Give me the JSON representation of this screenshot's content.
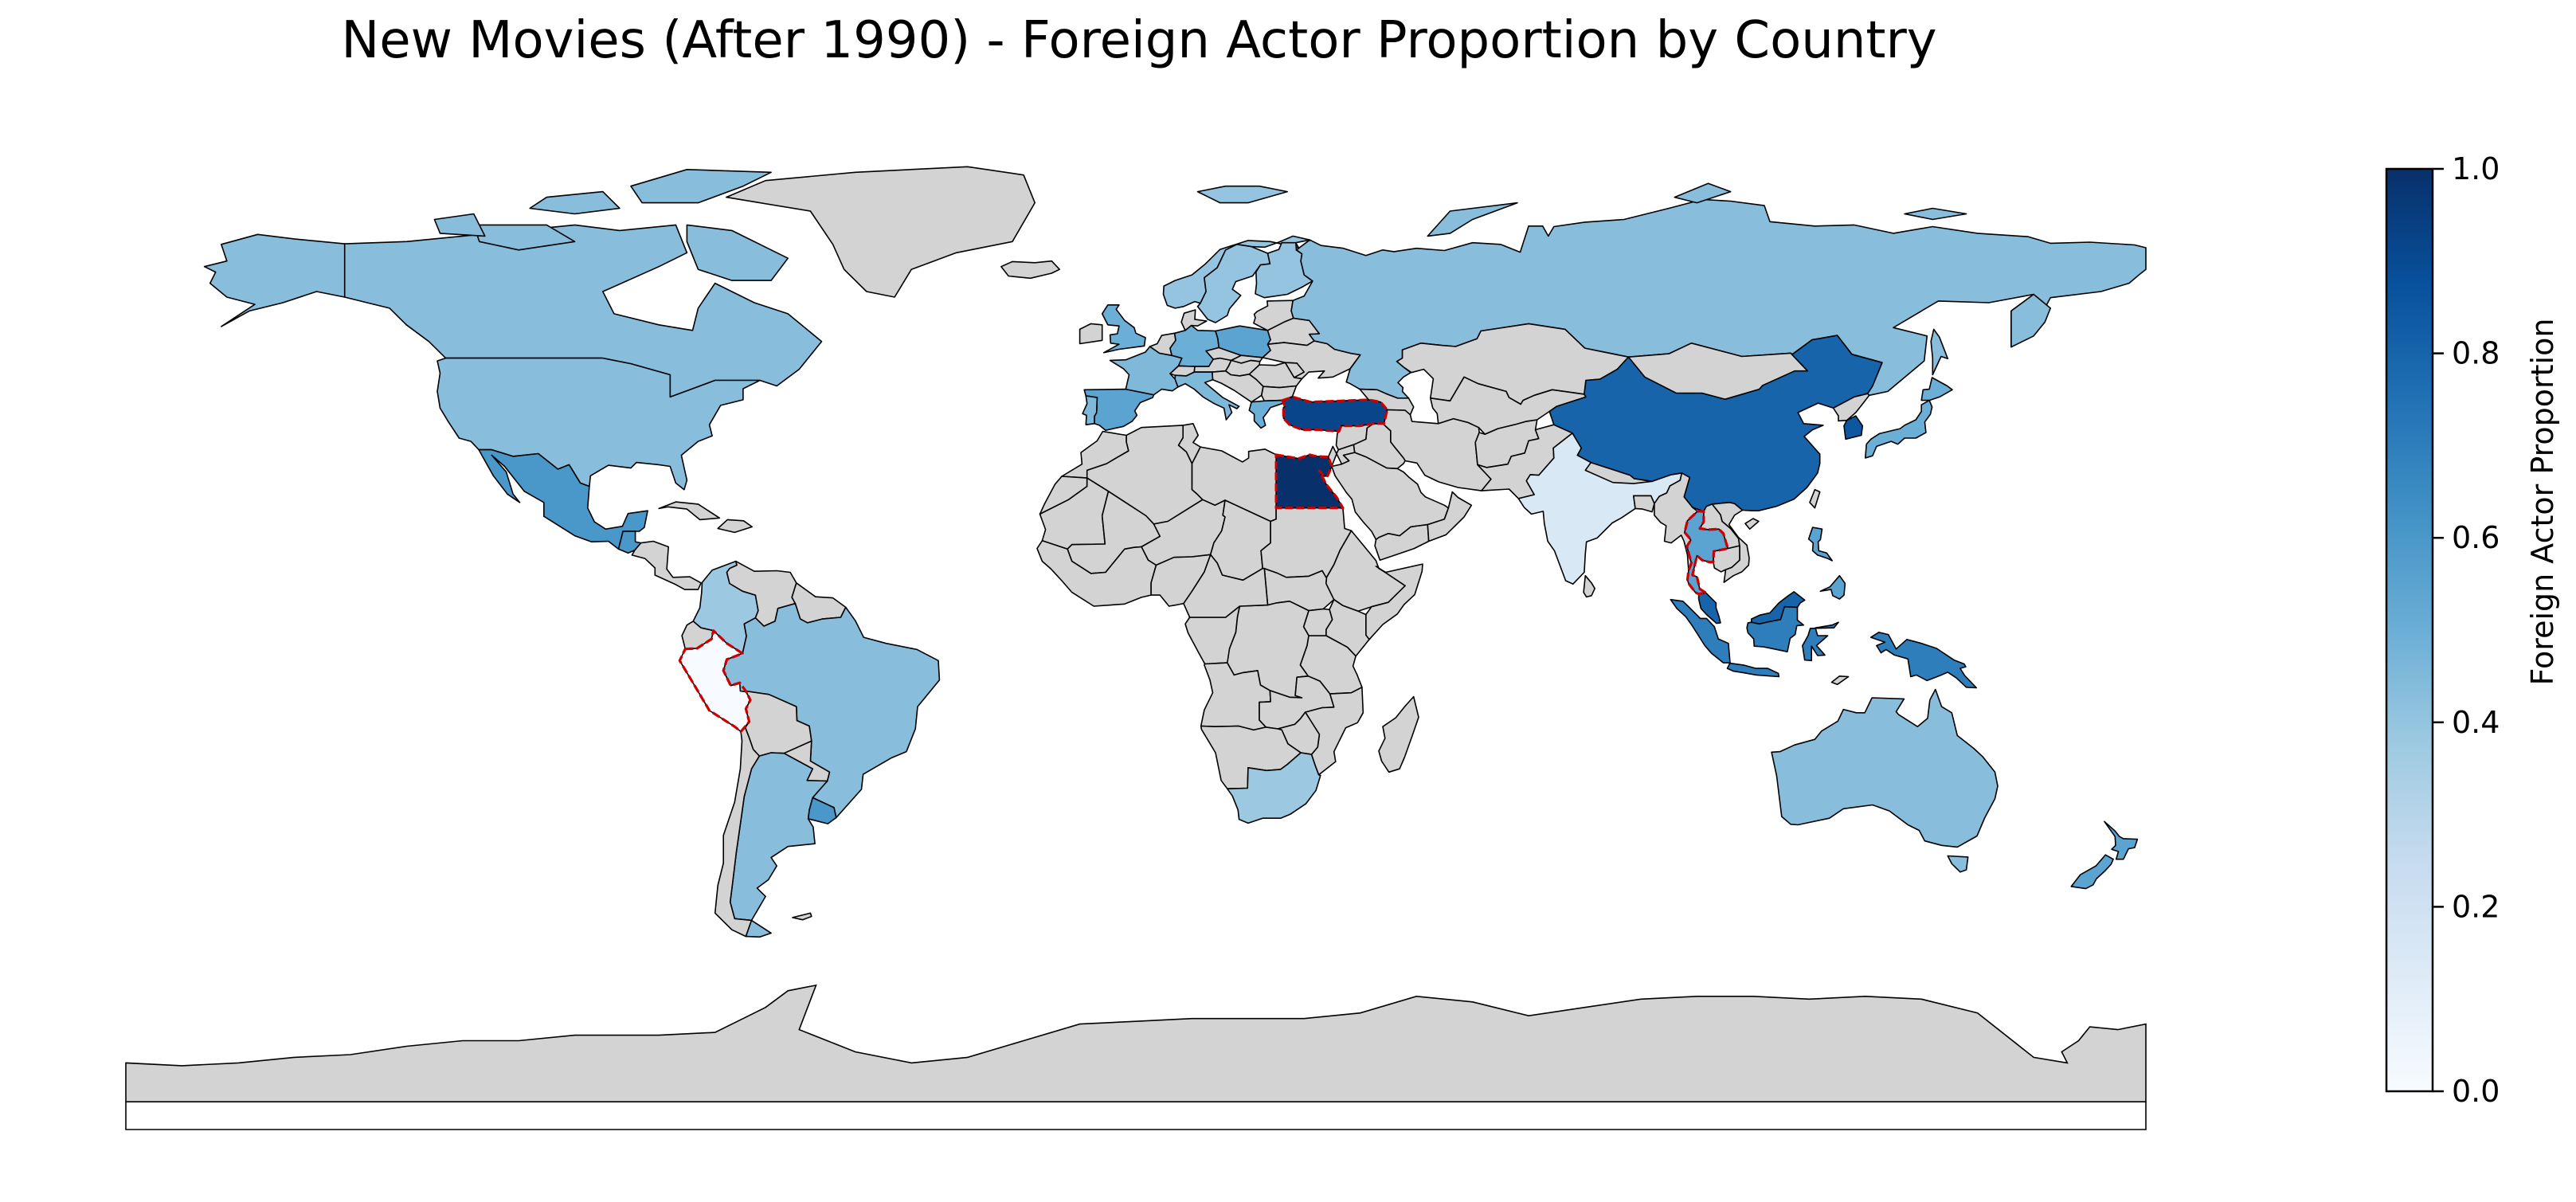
{
  "title": "New Movies (After 1990) - Foreign Actor Proportion by Country",
  "colorbar": {
    "label": "Foreign Actor Proportion",
    "min": 0.0,
    "max": 1.0,
    "ticks": [
      "0.0",
      "0.2",
      "0.4",
      "0.6",
      "0.8",
      "1.0"
    ],
    "colormap": "Blues",
    "color_stops": [
      "#f7fbff",
      "#deebf7",
      "#c6dbef",
      "#9ecae1",
      "#6baed6",
      "#4292c6",
      "#2171b5",
      "#08519c",
      "#08306b"
    ]
  },
  "colors": {
    "no_data": "#d3d3d3",
    "country_border": "#000000",
    "highlight_border": "#cc0000",
    "ocean": "#ffffff"
  },
  "map": {
    "projection": "equirectangular",
    "countries": [
      {
        "name": "Canada",
        "value": 0.43
      },
      {
        "name": "United States",
        "value": 0.43
      },
      {
        "name": "Mexico",
        "value": 0.6
      },
      {
        "name": "Greenland",
        "value": null
      },
      {
        "name": "Guatemala",
        "value": 0.6
      },
      {
        "name": "Colombia",
        "value": 0.38
      },
      {
        "name": "Venezuela",
        "value": null
      },
      {
        "name": "Peru",
        "value": 0.0,
        "highlighted": true
      },
      {
        "name": "Brazil",
        "value": 0.43
      },
      {
        "name": "Bolivia",
        "value": null
      },
      {
        "name": "Paraguay",
        "value": null
      },
      {
        "name": "Uruguay",
        "value": 0.6
      },
      {
        "name": "Argentina",
        "value": 0.43
      },
      {
        "name": "Chile",
        "value": null
      },
      {
        "name": "United Kingdom",
        "value": 0.5
      },
      {
        "name": "Spain",
        "value": 0.55
      },
      {
        "name": "Portugal",
        "value": 0.45
      },
      {
        "name": "France",
        "value": 0.45
      },
      {
        "name": "Germany",
        "value": 0.5
      },
      {
        "name": "Italy",
        "value": 0.45
      },
      {
        "name": "Norway",
        "value": 0.4
      },
      {
        "name": "Sweden",
        "value": 0.4
      },
      {
        "name": "Finland",
        "value": 0.4
      },
      {
        "name": "Poland",
        "value": 0.55
      },
      {
        "name": "Greece",
        "value": 0.5
      },
      {
        "name": "Turkey",
        "value": 0.92,
        "highlighted": true
      },
      {
        "name": "Russia",
        "value": 0.43
      },
      {
        "name": "Egypt",
        "value": 1.0,
        "highlighted": true
      },
      {
        "name": "South Africa",
        "value": 0.38
      },
      {
        "name": "India",
        "value": 0.15
      },
      {
        "name": "China",
        "value": 0.8
      },
      {
        "name": "Mongolia",
        "value": null
      },
      {
        "name": "Japan",
        "value": 0.5
      },
      {
        "name": "South Korea",
        "value": 0.85
      },
      {
        "name": "Thailand",
        "value": 0.55,
        "highlighted": true
      },
      {
        "name": "Malaysia",
        "value": 0.8
      },
      {
        "name": "Indonesia",
        "value": 0.7
      },
      {
        "name": "Philippines",
        "value": 0.55
      },
      {
        "name": "Papua New Guinea",
        "value": 0.7
      },
      {
        "name": "Australia",
        "value": 0.43
      },
      {
        "name": "New Zealand",
        "value": 0.55
      },
      {
        "name": "Antarctica",
        "value": null
      }
    ]
  }
}
